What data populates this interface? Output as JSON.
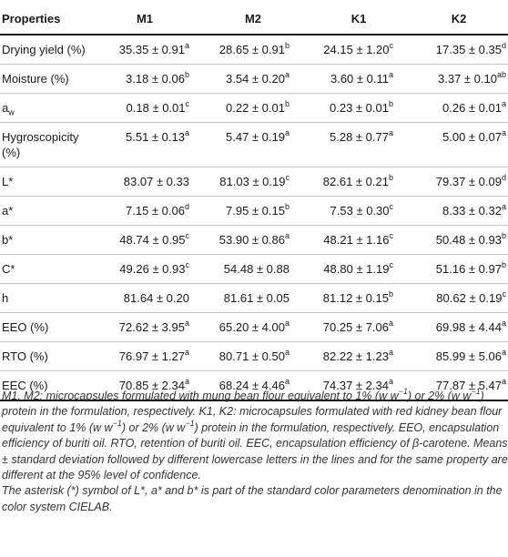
{
  "table": {
    "headers": [
      "Properties",
      "M1",
      "M2",
      "K1",
      "K2"
    ],
    "rows": [
      {
        "property": "Drying yield (%)",
        "cells": [
          {
            "v": "35.35 ± 0.91",
            "sup": "a"
          },
          {
            "v": "28.65 ± 0.91",
            "sup": "b"
          },
          {
            "v": "24.15 ± 1.20",
            "sup": "c"
          },
          {
            "v": "17.35 ± 0.35",
            "sup": "d"
          }
        ]
      },
      {
        "property": "Moisture (%)",
        "cells": [
          {
            "v": "3.18 ± 0.06",
            "sup": "b"
          },
          {
            "v": "3.54 ± 0.20",
            "sup": "a"
          },
          {
            "v": "3.60 ± 0.11",
            "sup": "a"
          },
          {
            "v": "3.37 ± 0.10",
            "sup": "ab"
          }
        ]
      },
      {
        "property": "a",
        "property_sub": "w",
        "cells": [
          {
            "v": "0.18 ± 0.01",
            "sup": "c"
          },
          {
            "v": "0.22 ± 0.01",
            "sup": "b"
          },
          {
            "v": "0.23 ± 0.01",
            "sup": "b"
          },
          {
            "v": "0.26 ± 0.01",
            "sup": "a"
          }
        ]
      },
      {
        "property": "Hygroscopicity (%)",
        "cells": [
          {
            "v": "5.51 ± 0.13",
            "sup": "a"
          },
          {
            "v": "5.47 ± 0.19",
            "sup": "a"
          },
          {
            "v": "5.28 ± 0.77",
            "sup": "a"
          },
          {
            "v": "5.00 ± 0.07",
            "sup": "a"
          }
        ]
      },
      {
        "property": "L*",
        "cells": [
          {
            "v": "83.07 ± 0.33",
            "sup": ""
          },
          {
            "v": "81.03 ± 0.19",
            "sup": "c"
          },
          {
            "v": "82.61 ± 0.21",
            "sup": "b"
          },
          {
            "v": "79.37 ± 0.09",
            "sup": "d"
          }
        ]
      },
      {
        "property": "a*",
        "cells": [
          {
            "v": "7.15 ± 0.06",
            "sup": "d"
          },
          {
            "v": "7.95 ± 0.15",
            "sup": "b"
          },
          {
            "v": "7.53 ± 0.30",
            "sup": "c"
          },
          {
            "v": "8.33 ± 0.32",
            "sup": "a"
          }
        ]
      },
      {
        "property": "b*",
        "cells": [
          {
            "v": "48.74 ± 0.95",
            "sup": "c"
          },
          {
            "v": "53.90 ± 0.86",
            "sup": "a"
          },
          {
            "v": "48.21 ± 1.16",
            "sup": "c"
          },
          {
            "v": "50.48 ± 0.93",
            "sup": "b"
          }
        ]
      },
      {
        "property": "C*",
        "cells": [
          {
            "v": "49.26 ± 0.93",
            "sup": "c"
          },
          {
            "v": "54.48 ± 0.88",
            "sup": ""
          },
          {
            "v": "48.80 ± 1.19",
            "sup": "c"
          },
          {
            "v": "51.16 ± 0.97",
            "sup": "b"
          }
        ]
      },
      {
        "property": "h",
        "cells": [
          {
            "v": "81.64 ± 0.20",
            "sup": ""
          },
          {
            "v": "81.61 ± 0.05",
            "sup": ""
          },
          {
            "v": "81.12 ± 0.15",
            "sup": "b"
          },
          {
            "v": "80.62 ± 0.19",
            "sup": "c"
          }
        ]
      },
      {
        "property": "EEO (%)",
        "cells": [
          {
            "v": "72.62 ± 3.95",
            "sup": "a"
          },
          {
            "v": "65.20 ± 4.00",
            "sup": "a"
          },
          {
            "v": "70.25 ± 7.06",
            "sup": "a"
          },
          {
            "v": "69.98 ± 4.44",
            "sup": "a"
          }
        ]
      },
      {
        "property": "RTO (%)",
        "cells": [
          {
            "v": "76.97 ± 1.27",
            "sup": "a"
          },
          {
            "v": "80.71 ± 0.50",
            "sup": "a"
          },
          {
            "v": "82.22 ± 1.23",
            "sup": "a"
          },
          {
            "v": "85.99 ± 5.06",
            "sup": "a"
          }
        ]
      },
      {
        "property": "EEC (%)",
        "cells": [
          {
            "v": "70.85 ± 2.34",
            "sup": "a"
          },
          {
            "v": "68.24 ± 4.46",
            "sup": "a"
          },
          {
            "v": "74.37 ± 2.34",
            "sup": "a"
          },
          {
            "v": "77.87 ± 5.47",
            "sup": "a"
          }
        ]
      }
    ]
  },
  "footnotes": {
    "n1": {
      "t1": "M1, M2: microcapsules formulated with mung bean flour equivalent to 1% (w w",
      "s1": "−1",
      "t2": ") or 2% (w w",
      "s2": "−1",
      "t3": ") protein in the formulation, respectively. K1, K2: microcapsules formulated with red kidney bean flour equivalent to 1% (w w",
      "s3": "−1",
      "t4": ") or 2% (w w",
      "s4": "−1",
      "t5": ") protein in the formulation, respectively. EEO, encapsulation efficiency of buriti oil. RTO, retention of buriti oil. EEC, encapsulation efficiency of β-carotene. Means ± standard deviation followed by different lowercase letters in the lines and for the same property are different at the 95% level of confidence."
    },
    "n2": "The asterisk (*) symbol of L*, a* and b* is part of the standard color parameters denomination in the color system CIELAB."
  }
}
